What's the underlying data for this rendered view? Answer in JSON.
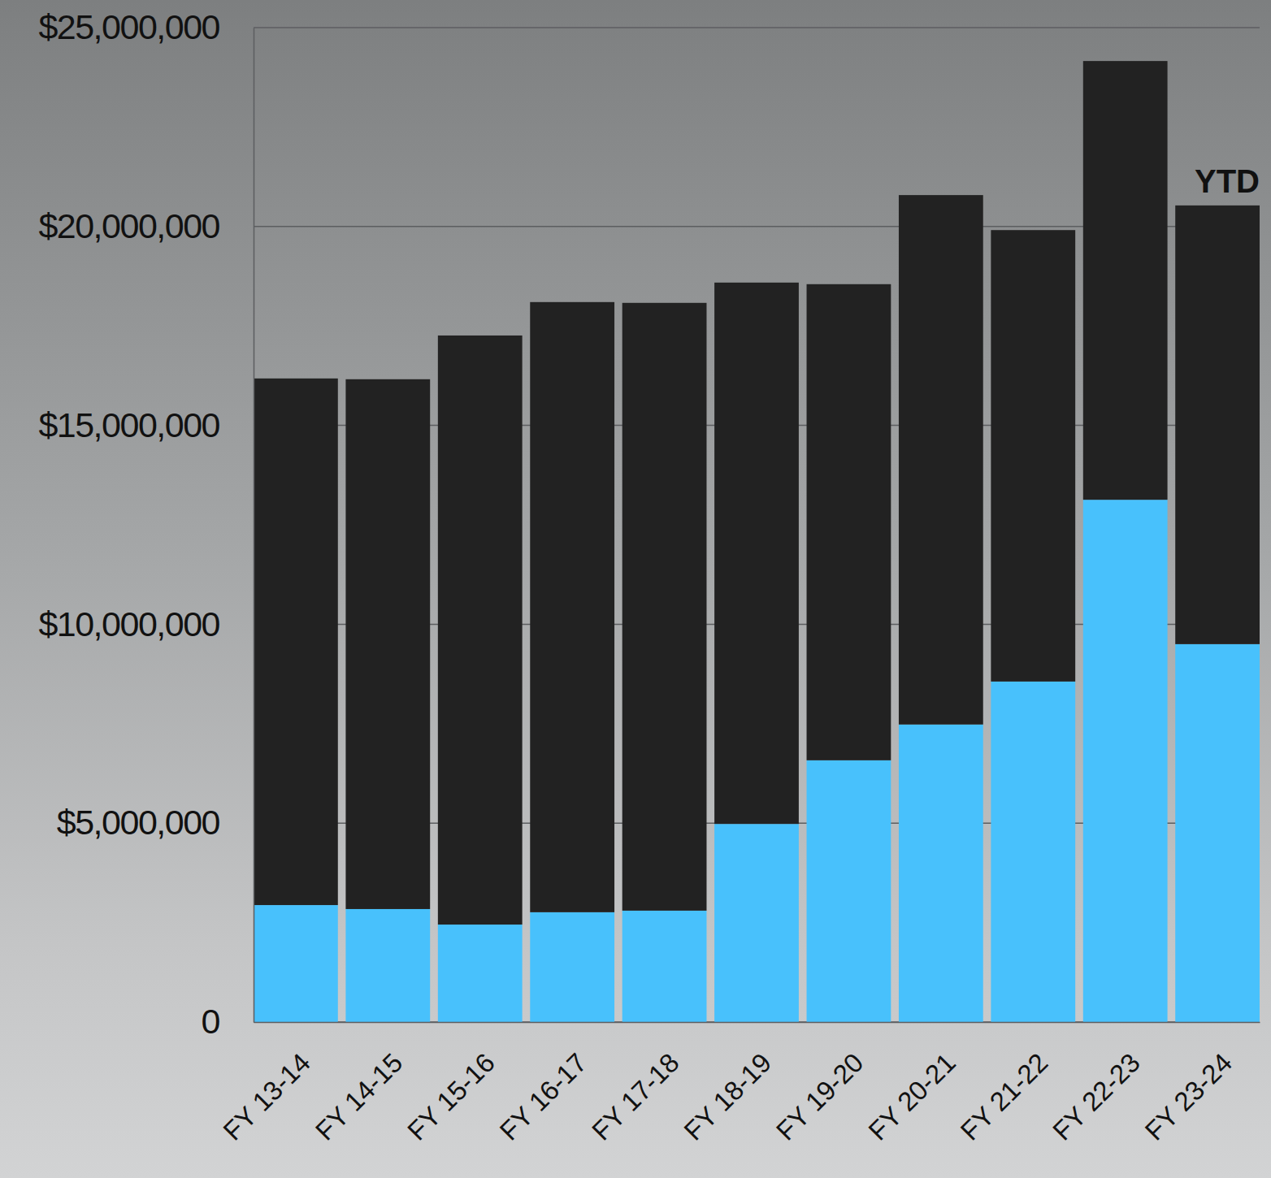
{
  "chart_data": {
    "type": "bar",
    "stacked": true,
    "categories": [
      "FY 13-14",
      "FY 14-15",
      "FY 15-16",
      "FY 16-17",
      "FY 17-18",
      "FY 18-19",
      "FY 19-20",
      "FY 20-21",
      "FY 21-22",
      "FY 22-23",
      "FY 23-24"
    ],
    "series": [
      {
        "color": "#48c1fc",
        "values": [
          2940000,
          2840000,
          2450000,
          2760000,
          2800000,
          4980000,
          6580000,
          7480000,
          8560000,
          13130000,
          9500000
        ]
      },
      {
        "color": "#222222",
        "values": [
          13240000,
          13320000,
          14810000,
          15340000,
          15280000,
          13610000,
          11970000,
          13310000,
          11350000,
          11030000,
          11030000
        ]
      }
    ],
    "ylim": [
      0,
      25000000
    ],
    "yticks": [
      0,
      {
        "value": 5000000,
        "label": "$5,000,000"
      },
      {
        "value": 10000000,
        "label": "$10,000,000"
      },
      {
        "value": 15000000,
        "label": "$15,000,000"
      },
      {
        "value": 20000000,
        "label": "$20,000,000"
      },
      {
        "value": 25000000,
        "label": "$25,000,000"
      }
    ],
    "grid": true,
    "annotations": [
      {
        "text": "YTD",
        "x": "FY 23-24"
      }
    ]
  }
}
